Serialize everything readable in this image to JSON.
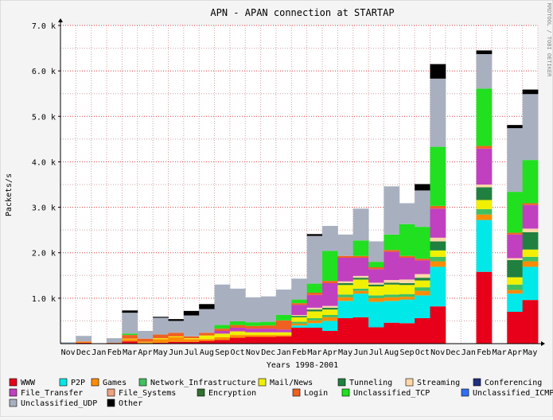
{
  "chart_data": {
    "type": "bar",
    "stacked": true,
    "title": "APN - APAN connection at STARTAP",
    "xlabel": "Years 1998-2001",
    "ylabel": "Packets/s",
    "watermark": "RRDTOOL / TOBI OETIKER",
    "ylim": [
      0,
      7000
    ],
    "yticks": [
      {
        "value": 1000,
        "label": "1.0 k"
      },
      {
        "value": 2000,
        "label": "2.0 k"
      },
      {
        "value": 3000,
        "label": "3.0 k"
      },
      {
        "value": 4000,
        "label": "4.0 k"
      },
      {
        "value": 5000,
        "label": "5.0 k"
      },
      {
        "value": 6000,
        "label": "6.0 k"
      },
      {
        "value": 7000,
        "label": "7.0 k"
      }
    ],
    "grid": true,
    "categories": [
      "Nov",
      "Dec",
      "Jan",
      "Feb",
      "Mar",
      "Apr",
      "May",
      "Jun",
      "Jul",
      "Aug",
      "Sep",
      "Oct",
      "Nov",
      "Dec",
      "Jan",
      "Feb",
      "Mar",
      "Apr",
      "May",
      "Jun",
      "Jul",
      "Aug",
      "Sep",
      "Oct",
      "Nov",
      "Dec",
      "Jan",
      "Feb",
      "Mar",
      "Apr",
      "May"
    ],
    "series": [
      {
        "name": "WWW",
        "color": "#e8001a",
        "values": [
          0,
          20,
          0,
          0,
          50,
          0,
          20,
          40,
          40,
          60,
          80,
          130,
          150,
          150,
          160,
          350,
          350,
          280,
          560,
          580,
          360,
          460,
          450,
          560,
          820,
          0,
          0,
          1580,
          0,
          700,
          960
        ]
      },
      {
        "name": "P2P",
        "color": "#00e8e8",
        "values": [
          0,
          0,
          0,
          0,
          0,
          0,
          0,
          0,
          0,
          0,
          0,
          0,
          0,
          0,
          0,
          50,
          100,
          220,
          380,
          520,
          560,
          480,
          520,
          500,
          870,
          0,
          0,
          1140,
          0,
          400,
          730
        ]
      },
      {
        "name": "Games",
        "color": "#ff8c00",
        "values": [
          0,
          20,
          0,
          0,
          50,
          30,
          80,
          100,
          60,
          40,
          60,
          60,
          40,
          40,
          30,
          40,
          60,
          80,
          80,
          60,
          80,
          80,
          60,
          100,
          120,
          0,
          0,
          120,
          0,
          80,
          120
        ]
      },
      {
        "name": "Network_Infrastructure",
        "color": "#40c060",
        "values": [
          0,
          0,
          0,
          0,
          0,
          0,
          0,
          0,
          0,
          0,
          0,
          0,
          0,
          0,
          0,
          40,
          50,
          50,
          60,
          50,
          60,
          60,
          60,
          80,
          100,
          0,
          0,
          120,
          0,
          120,
          100
        ]
      },
      {
        "name": "Mail/News",
        "color": "#f0f000",
        "values": [
          0,
          0,
          0,
          0,
          10,
          10,
          20,
          20,
          20,
          80,
          80,
          80,
          60,
          60,
          60,
          100,
          150,
          120,
          210,
          200,
          200,
          220,
          200,
          150,
          140,
          0,
          0,
          200,
          0,
          160,
          160
        ]
      },
      {
        "name": "Tunneling",
        "color": "#208040",
        "values": [
          0,
          0,
          0,
          0,
          0,
          0,
          0,
          0,
          0,
          0,
          0,
          0,
          0,
          0,
          0,
          30,
          40,
          40,
          40,
          40,
          40,
          40,
          40,
          60,
          200,
          0,
          0,
          280,
          0,
          380,
          380
        ]
      },
      {
        "name": "Streaming",
        "color": "#ffd8a8",
        "values": [
          0,
          0,
          0,
          0,
          0,
          0,
          0,
          0,
          0,
          0,
          0,
          0,
          0,
          0,
          0,
          20,
          40,
          40,
          40,
          40,
          40,
          60,
          80,
          80,
          80,
          0,
          0,
          60,
          0,
          40,
          80
        ]
      },
      {
        "name": "Conferencing",
        "color": "#203080",
        "values": [
          0,
          0,
          0,
          0,
          0,
          0,
          0,
          0,
          0,
          0,
          0,
          0,
          0,
          0,
          0,
          0,
          0,
          0,
          0,
          0,
          0,
          0,
          0,
          0,
          0,
          0,
          0,
          0,
          0,
          0,
          0
        ]
      },
      {
        "name": "File_Transfer",
        "color": "#c040c0",
        "values": [
          0,
          0,
          0,
          0,
          0,
          0,
          0,
          0,
          0,
          0,
          60,
          80,
          80,
          80,
          60,
          220,
          280,
          500,
          520,
          400,
          300,
          620,
          480,
          300,
          640,
          0,
          0,
          790,
          0,
          520,
          520
        ]
      },
      {
        "name": "File_Systems",
        "color": "#f0a080",
        "values": [
          0,
          0,
          0,
          0,
          0,
          0,
          0,
          0,
          0,
          0,
          0,
          0,
          0,
          0,
          0,
          0,
          0,
          0,
          0,
          0,
          0,
          0,
          0,
          0,
          0,
          0,
          0,
          0,
          0,
          0,
          0
        ]
      },
      {
        "name": "Encryption",
        "color": "#307030",
        "values": [
          0,
          0,
          0,
          0,
          0,
          0,
          0,
          0,
          0,
          0,
          0,
          0,
          0,
          0,
          0,
          0,
          0,
          0,
          0,
          0,
          0,
          0,
          0,
          0,
          0,
          0,
          0,
          0,
          0,
          0,
          0
        ]
      },
      {
        "name": "Login",
        "color": "#f06020",
        "values": [
          0,
          10,
          0,
          20,
          80,
          70,
          80,
          80,
          40,
          60,
          50,
          60,
          60,
          70,
          200,
          40,
          50,
          50,
          40,
          40,
          40,
          40,
          40,
          40,
          60,
          0,
          0,
          60,
          0,
          40,
          40
        ]
      },
      {
        "name": "Unclassified_TCP",
        "color": "#20e020",
        "values": [
          0,
          0,
          0,
          0,
          30,
          0,
          0,
          0,
          0,
          0,
          80,
          80,
          80,
          80,
          120,
          80,
          200,
          660,
          0,
          340,
          120,
          340,
          700,
          700,
          1300,
          0,
          0,
          1260,
          0,
          900,
          950
        ]
      },
      {
        "name": "Unclassified_ICMP",
        "color": "#3070f0",
        "values": [
          0,
          0,
          0,
          0,
          0,
          0,
          0,
          0,
          0,
          0,
          0,
          0,
          0,
          0,
          0,
          0,
          0,
          0,
          0,
          0,
          0,
          0,
          0,
          0,
          0,
          0,
          0,
          0,
          0,
          0,
          0
        ]
      },
      {
        "name": "Unclassified_UDP",
        "color": "#a8b0c0",
        "values": [
          30,
          120,
          0,
          100,
          460,
          170,
          370,
          260,
          460,
          520,
          890,
          720,
          550,
          560,
          560,
          460,
          1050,
          550,
          470,
          700,
          450,
          1060,
          460,
          800,
          1500,
          0,
          0,
          760,
          0,
          1400,
          1450
        ]
      },
      {
        "name": "Other",
        "color": "#000000",
        "values": [
          0,
          0,
          0,
          0,
          50,
          0,
          20,
          40,
          100,
          110,
          0,
          0,
          0,
          0,
          0,
          0,
          40,
          0,
          0,
          0,
          0,
          0,
          0,
          140,
          320,
          0,
          0,
          80,
          0,
          70,
          100
        ]
      }
    ]
  }
}
